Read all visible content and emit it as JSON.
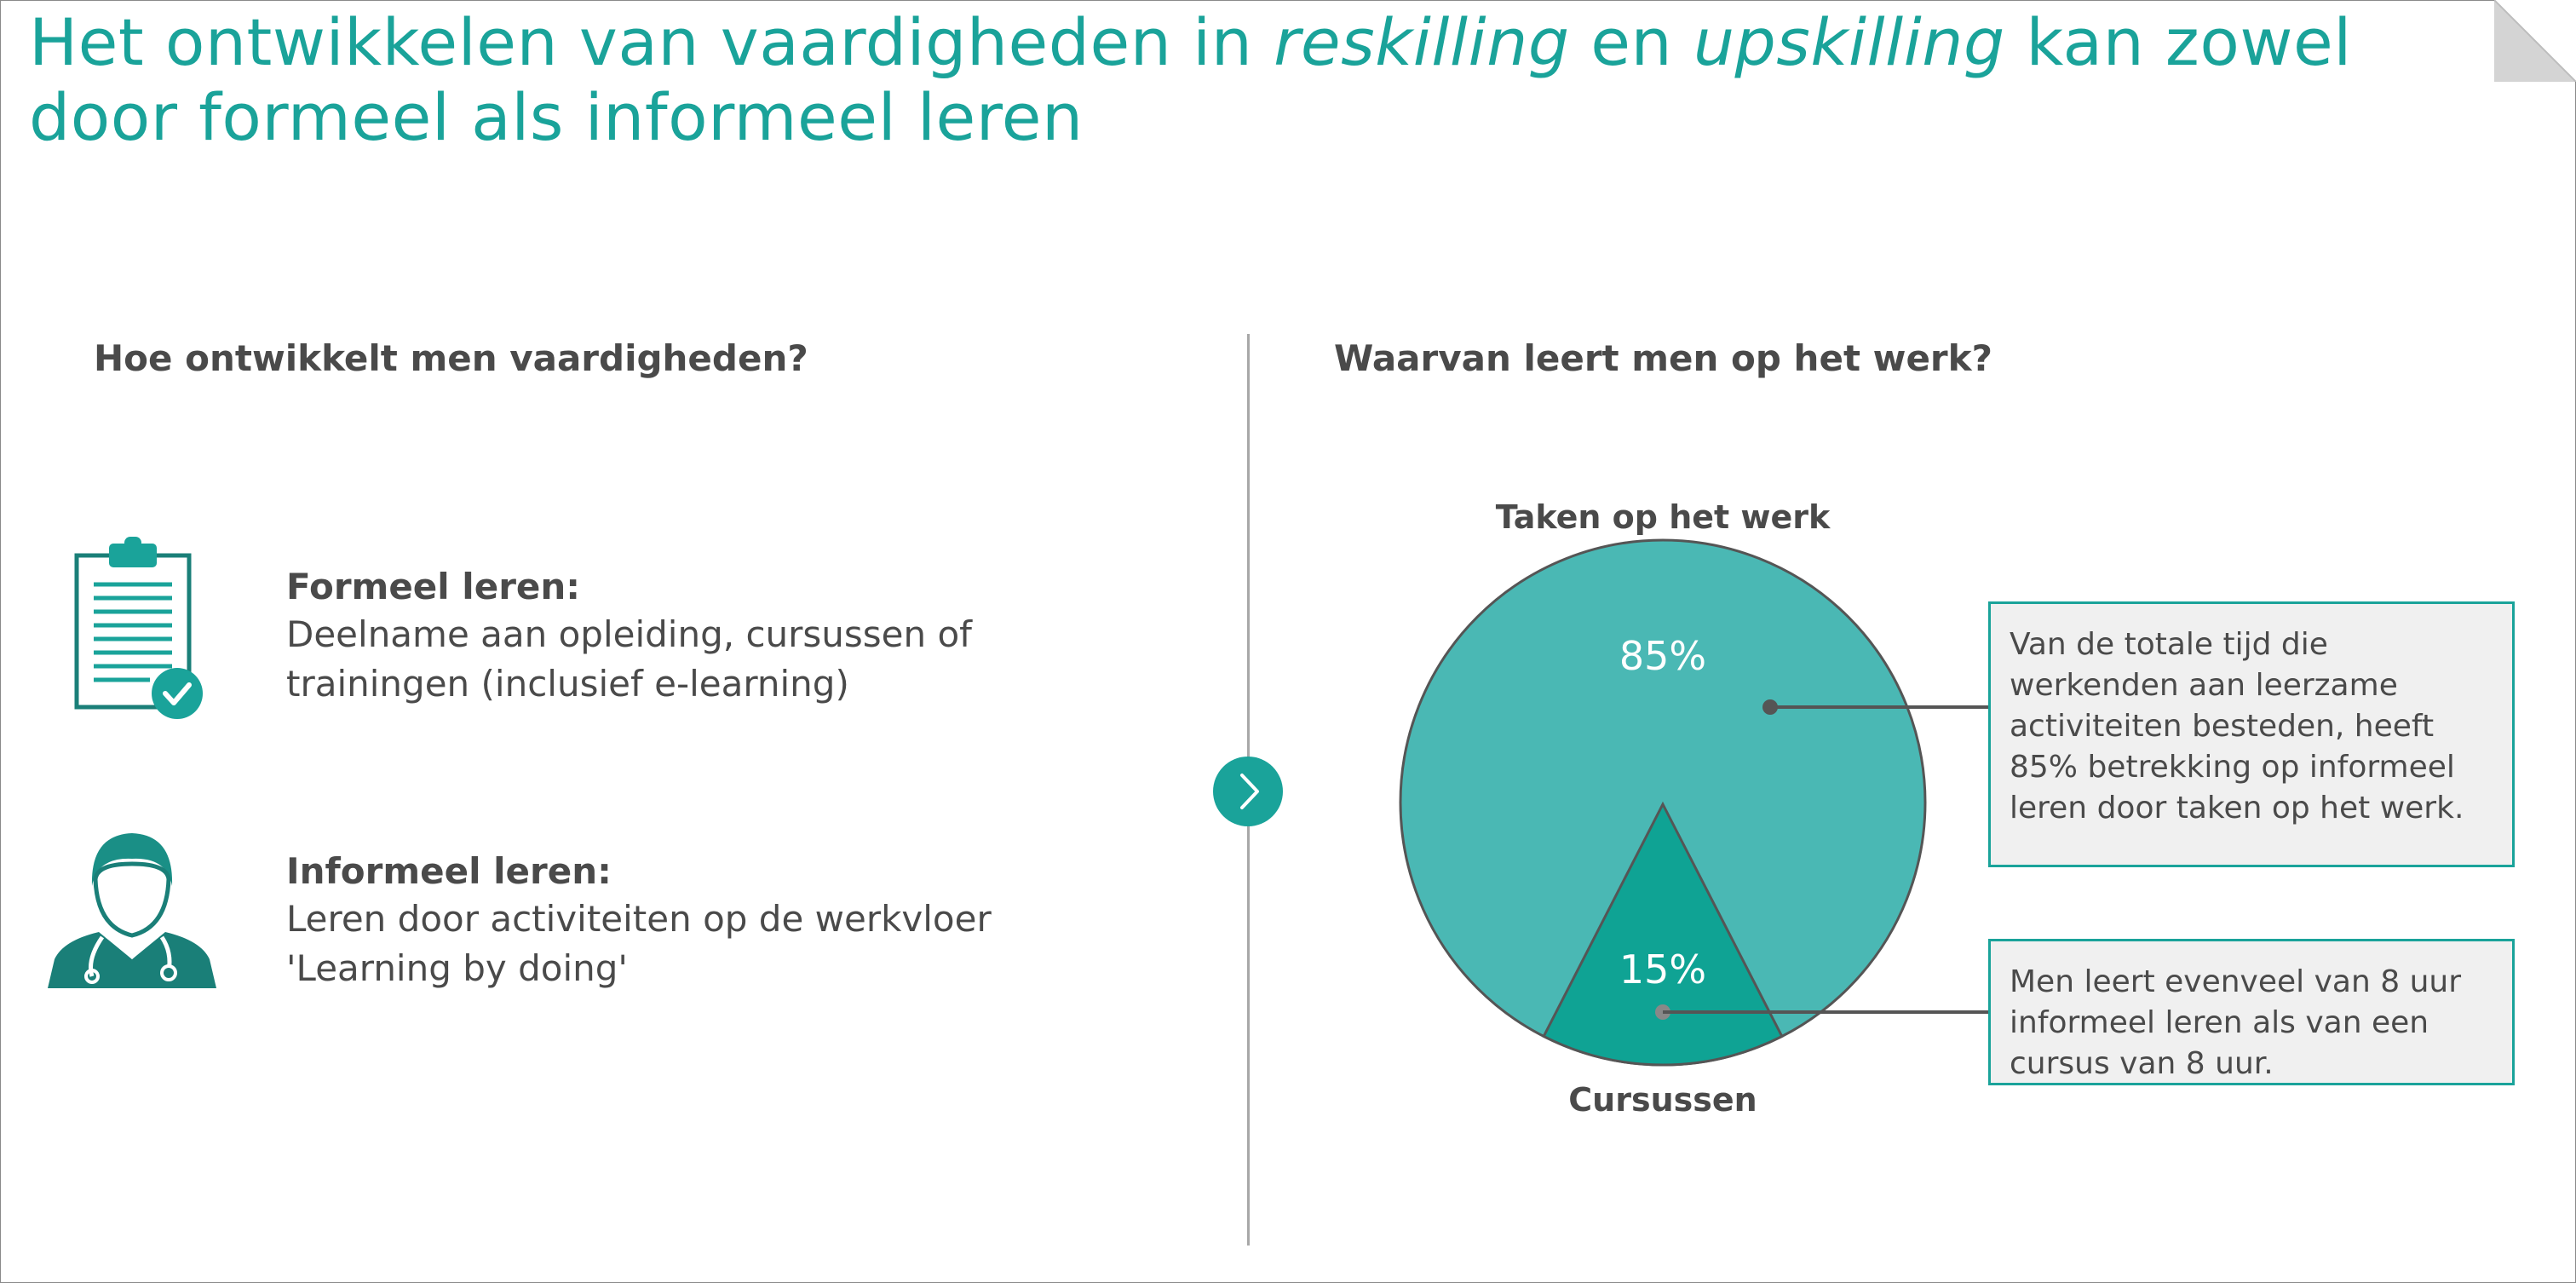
{
  "title": {
    "part1": "Het ontwikkelen van vaardigheden in ",
    "italic1": "reskilling",
    "part2": " en ",
    "italic2": "upskilling",
    "part3": " kan zowel door formeel als informeel leren"
  },
  "left": {
    "heading": "Hoe ontwikkelt men vaardigheden?",
    "items": [
      {
        "icon": "clipboard-check-icon",
        "title": "Formeel leren:",
        "lines": [
          "Deelname aan opleiding, cursussen of",
          "trainingen (inclusief e-learning)"
        ]
      },
      {
        "icon": "doctor-icon",
        "title": "Informeel leren:",
        "lines": [
          "Leren door activiteiten op de werkvloer",
          "'Learning by doing'"
        ]
      }
    ]
  },
  "right": {
    "heading": "Waarvan leert men op het werk?",
    "callouts": [
      [
        "Van de totale tijd die",
        "werkenden aan leerzame",
        "activiteiten besteden, heeft",
        "85% betrekking op informeel",
        "leren door taken op het werk."
      ],
      [
        "Men leert evenveel van 8 uur",
        "informeel leren als van een",
        "cursus van 8 uur."
      ]
    ]
  },
  "nav": {
    "arrow_icon": "chevron-right-icon"
  },
  "colors": {
    "accent": "#1aa39a",
    "pie_large": "#4ab8b4",
    "pie_small": "#0fa394",
    "callout_bg": "#f0f0f0",
    "text": "#4a4a4a"
  },
  "chart_data": {
    "type": "pie",
    "categories": [
      "Taken op het werk",
      "Cursussen"
    ],
    "values": [
      85,
      15
    ],
    "data_labels": [
      "85%",
      "15%"
    ],
    "colors": [
      "#4ab8b4",
      "#0fa394"
    ]
  }
}
